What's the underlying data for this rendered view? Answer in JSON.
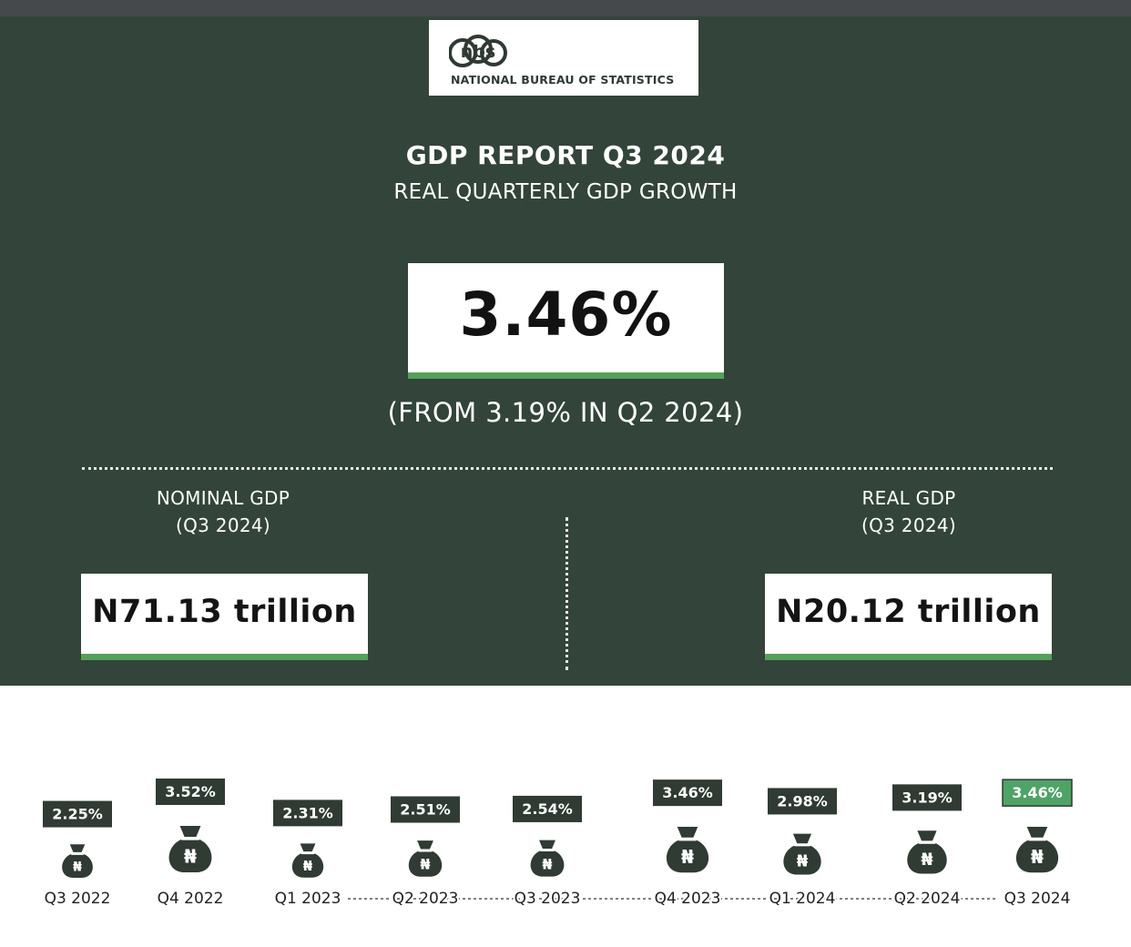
{
  "header": {
    "logo_mark": "nbs",
    "logo_text": "NATIONAL BUREAU OF STATISTICS",
    "title": "GDP REPORT Q3 2024",
    "subtitle": "REAL QUARTERLY GDP GROWTH"
  },
  "headline": {
    "value": "3.46%",
    "comparison": "(FROM 3.19% IN Q2 2024)"
  },
  "stats": {
    "nominal": {
      "label_line1": "NOMINAL GDP",
      "label_line2": "(Q3 2024)",
      "value": "N71.13 trillion"
    },
    "real": {
      "label_line1": "REAL GDP",
      "label_line2": "(Q3 2024)",
      "value": "N20.12 trillion"
    }
  },
  "colors": {
    "panel": "#33443a",
    "accent_green": "#55a05a",
    "label_dark": "#2f3b33",
    "highlight_label": "#4fa366"
  },
  "icons": {
    "bag": "money-bag-naira-icon",
    "currency_symbol": "₦"
  },
  "chart_data": {
    "type": "bar",
    "categories": [
      "Q3 2022",
      "Q4 2022",
      "Q1 2023",
      "Q2 2023",
      "Q3 2023",
      "Q4 2023",
      "Q1 2024",
      "Q2 2024",
      "Q3 2024"
    ],
    "values": [
      2.25,
      3.52,
      2.31,
      2.51,
      2.54,
      3.46,
      2.98,
      3.19,
      3.46
    ],
    "labels": [
      "2.25%",
      "3.52%",
      "2.31%",
      "2.51%",
      "2.54%",
      "3.46%",
      "2.98%",
      "3.19%",
      "3.46%"
    ],
    "highlight_index": 8,
    "title": "",
    "xlabel": "",
    "ylabel": ""
  }
}
